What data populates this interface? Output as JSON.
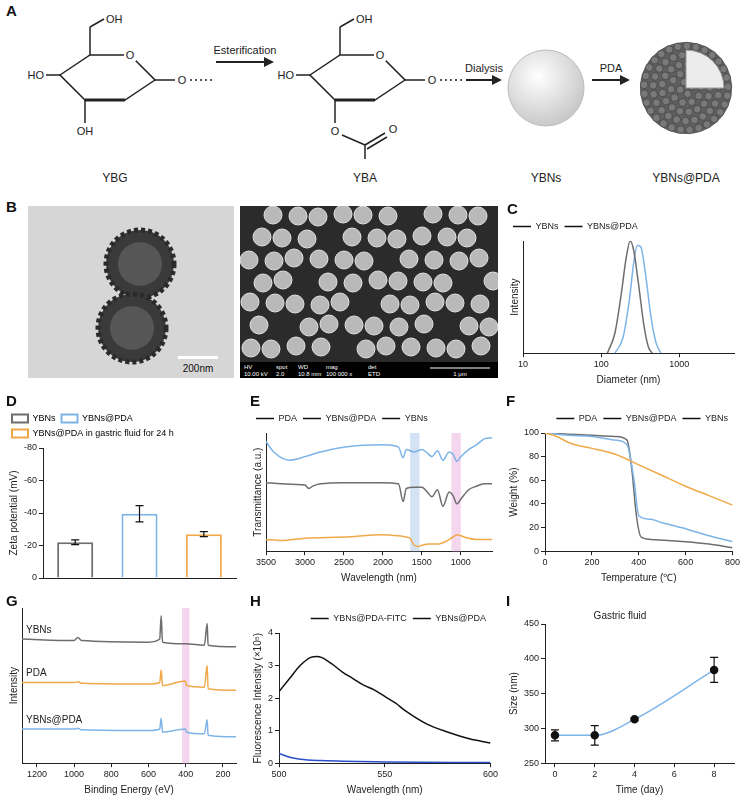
{
  "schematic": {
    "panel": "A",
    "steps": [
      "Esterification",
      "Dialysis",
      "PDA"
    ],
    "structures": [
      {
        "name": "YBG",
        "labels": [
          "OH",
          "HO",
          "O",
          "O",
          "OH"
        ]
      },
      {
        "name": "YBA",
        "labels": [
          "OH",
          "HO",
          "O",
          "O",
          "O",
          "O"
        ]
      }
    ],
    "particles": [
      "YBNs",
      "YBNs@PDA"
    ]
  },
  "images": {
    "panel": "B",
    "tem": {
      "scale_bar": "200nm"
    },
    "sem": {
      "heads": [
        "HV",
        "spot",
        "WD",
        "mag",
        "det"
      ],
      "values": [
        "10.00 kV",
        "2.0",
        "10.8 mm",
        "100 000 x",
        "ETD"
      ],
      "scale_bar": "1 μm"
    }
  },
  "chart_data": [
    {
      "panel": "C",
      "type": "line",
      "x_label": "Diameter (nm)",
      "y_label": "Intensity",
      "log": "x",
      "xlim": [
        10,
        5000
      ],
      "xticks": [
        10,
        100,
        1000
      ],
      "ylim": [
        0,
        100
      ],
      "tick_labels": "x",
      "grid": false,
      "legend": "upper left",
      "series": [
        {
          "name": "YBNs",
          "color": "#6e6e6e",
          "x": [
            120,
            150,
            180,
            210,
            235,
            260,
            300,
            350,
            400,
            450
          ],
          "values": [
            0,
            18,
            52,
            86,
            100,
            92,
            62,
            26,
            6,
            0
          ]
        },
        {
          "name": "YBNs@PDA",
          "color": "#7db4e8",
          "x": [
            150,
            190,
            230,
            260,
            290,
            320,
            370,
            430,
            500,
            580
          ],
          "values": [
            0,
            14,
            48,
            80,
            96,
            95,
            70,
            34,
            10,
            0
          ]
        }
      ]
    },
    {
      "panel": "D",
      "type": "bar",
      "y_label": "Zeta potential (mV)",
      "categories": [
        "YBNs",
        "YBNs@PDA",
        "YBNs@PDA in gastric fluid for 24 h"
      ],
      "values": [
        -22,
        -39.5,
        -27
      ],
      "errors": [
        1.5,
        5,
        1.5
      ],
      "colors": [
        "#6e6e6e",
        "#7db4e8",
        "#f0a848"
      ],
      "ylim": [
        0,
        -80
      ],
      "yticks": [
        0,
        -20,
        -40,
        -60,
        -80
      ],
      "tick_labels": "y",
      "grid": false,
      "legend": "upper left"
    },
    {
      "panel": "E",
      "type": "line",
      "x_label": "Wavelength (nm)",
      "y_label": "Transmittance (a.u.)",
      "xlim": [
        3500,
        600
      ],
      "xticks": [
        3500,
        3000,
        2500,
        2000,
        1500,
        1000
      ],
      "ylim": [
        0,
        100
      ],
      "tick_labels": "x",
      "grid": false,
      "legend": "upper left",
      "bands": [
        {
          "from": 1650,
          "to": 1530,
          "color": "#d3e3f5"
        },
        {
          "from": 1120,
          "to": 1000,
          "color": "#f4d6ef"
        }
      ],
      "series": [
        {
          "name": "PDA",
          "color": "#f0a848",
          "x": [
            3500,
            3300,
            3000,
            2500,
            2000,
            1800,
            1700,
            1650,
            1600,
            1550,
            1500,
            1400,
            1300,
            1200,
            1100,
            1050,
            1000,
            900,
            800,
            700,
            600
          ],
          "values": [
            10,
            9,
            11,
            12,
            14,
            13,
            12,
            11,
            5,
            4,
            5,
            6,
            6,
            8,
            12,
            14,
            13,
            11,
            10,
            10,
            10
          ]
        },
        {
          "name": "YBNs@PDA",
          "color": "#7db4e8",
          "x": [
            3500,
            3450,
            3400,
            3300,
            3200,
            3100,
            3000,
            2900,
            2800,
            2500,
            2000,
            1800,
            1740,
            1700,
            1600,
            1500,
            1430,
            1370,
            1300,
            1230,
            1150,
            1100,
            1050,
            1000,
            900,
            800,
            700,
            600
          ],
          "values": [
            93,
            88,
            84,
            79,
            77,
            78,
            80,
            82,
            84,
            88,
            90,
            88,
            79,
            86,
            84,
            86,
            83,
            80,
            85,
            77,
            84,
            82,
            76,
            80,
            86,
            90,
            95,
            96
          ]
        },
        {
          "name": "YBNs",
          "color": "#6e6e6e",
          "x": [
            3500,
            3300,
            3000,
            2950,
            2900,
            2800,
            2500,
            2000,
            1800,
            1740,
            1700,
            1600,
            1500,
            1430,
            1370,
            1300,
            1230,
            1150,
            1100,
            1050,
            1000,
            900,
            800,
            700,
            600
          ],
          "values": [
            58,
            57,
            56,
            53,
            55,
            57,
            58,
            58,
            57,
            42,
            53,
            54,
            54,
            50,
            46,
            52,
            38,
            50,
            47,
            40,
            44,
            52,
            55,
            57,
            57
          ]
        }
      ]
    },
    {
      "panel": "F",
      "type": "line",
      "x_label": "Temperature (℃)",
      "y_label": "Weight (%)",
      "xlim": [
        0,
        800
      ],
      "xticks": [
        0,
        200,
        400,
        600,
        800
      ],
      "ylim": [
        0,
        100
      ],
      "yticks": [
        0,
        20,
        40,
        60,
        80,
        100
      ],
      "grid": false,
      "legend": "upper right",
      "series": [
        {
          "name": "PDA",
          "color": "#f0a848",
          "x": [
            0,
            50,
            100,
            150,
            200,
            300,
            400,
            500,
            600,
            700,
            800
          ],
          "values": [
            100,
            97,
            92,
            89,
            87,
            82,
            73,
            64,
            55,
            47,
            39
          ]
        },
        {
          "name": "YBNs@PDA",
          "color": "#7db4e8",
          "x": [
            0,
            100,
            200,
            300,
            350,
            380,
            400,
            450,
            500,
            600,
            700,
            800
          ],
          "values": [
            100,
            98,
            97,
            94,
            90,
            60,
            30,
            27,
            24,
            19,
            13,
            8
          ]
        },
        {
          "name": "YBNs",
          "color": "#6e6e6e",
          "x": [
            0,
            100,
            200,
            300,
            350,
            370,
            390,
            410,
            450,
            600,
            700,
            800
          ],
          "values": [
            100,
            99,
            98,
            97,
            94,
            70,
            30,
            12,
            10,
            8,
            6,
            3
          ]
        }
      ]
    },
    {
      "panel": "G",
      "type": "line",
      "x_label": "Binding Energy (eV)",
      "y_label": "Intensity",
      "xlim": [
        1280,
        130
      ],
      "xticks": [
        1200,
        1000,
        800,
        600,
        400,
        200
      ],
      "ylim": [
        0,
        100
      ],
      "tick_labels": "x",
      "grid": false,
      "legend": "inline",
      "bands": [
        {
          "from": 420,
          "to": 380,
          "color": "#f4d6ef"
        }
      ],
      "series": [
        {
          "name": "YBNs",
          "color": "#6e6e6e",
          "x": [
            1280,
            1000,
            980,
            960,
            600,
            540,
            532,
            525,
            400,
            300,
            285,
            280,
            130
          ],
          "values": [
            80,
            79,
            81,
            79,
            78,
            80,
            95,
            78,
            77,
            76,
            90,
            76,
            75
          ]
        },
        {
          "name": "PDA",
          "color": "#f0a848",
          "x": [
            1280,
            1000,
            980,
            960,
            600,
            540,
            532,
            525,
            402,
            395,
            300,
            285,
            280,
            130
          ],
          "values": [
            52,
            52,
            52.5,
            51.5,
            51,
            52,
            60,
            50,
            53,
            50,
            49,
            63,
            48,
            47
          ]
        },
        {
          "name": "YBNs@PDA",
          "color": "#7db4e8",
          "x": [
            1280,
            1000,
            980,
            960,
            600,
            540,
            532,
            525,
            402,
            395,
            300,
            285,
            280,
            130
          ],
          "values": [
            22,
            22,
            22.5,
            21.5,
            21,
            22,
            29,
            20,
            22,
            20,
            19,
            28,
            18,
            17
          ]
        }
      ]
    },
    {
      "panel": "H",
      "type": "line",
      "x_label": "Wavelength (nm)",
      "y_label": "Fluorescence Intensity (×10⁵)",
      "xlim": [
        500,
        600
      ],
      "xticks": [
        500,
        550,
        600
      ],
      "ylim": [
        0,
        4
      ],
      "yticks": [
        0,
        1,
        2,
        3,
        4
      ],
      "grid": false,
      "legend": "upper right",
      "series": [
        {
          "name": "YBNs@PDA-FITC",
          "color": "#111111",
          "x": [
            500,
            505,
            510,
            515,
            518,
            520,
            525,
            530,
            535,
            540,
            545,
            550,
            555,
            560,
            570,
            580,
            590,
            600
          ],
          "values": [
            2.2,
            2.6,
            3.0,
            3.25,
            3.28,
            3.25,
            3.05,
            2.8,
            2.6,
            2.4,
            2.25,
            2.05,
            1.85,
            1.6,
            1.2,
            0.95,
            0.75,
            0.62
          ]
        },
        {
          "name": "YBNs@PDA",
          "color": "#2b4fc9",
          "x": [
            500,
            505,
            510,
            520,
            550,
            600
          ],
          "values": [
            0.3,
            0.18,
            0.12,
            0.08,
            0.04,
            0.02
          ]
        }
      ]
    },
    {
      "panel": "I",
      "type": "line",
      "title": "Gastric fluid",
      "x_label": "Time (day)",
      "y_label": "Size (nm)",
      "xlim": [
        -0.5,
        9
      ],
      "xticks": [
        0,
        2,
        4,
        6,
        8
      ],
      "ylim": [
        250,
        450
      ],
      "yticks": [
        250,
        300,
        350,
        400,
        450
      ],
      "grid": false,
      "series": [
        {
          "color": "#7db4e8",
          "marker": "circle",
          "x": [
            0,
            2,
            4,
            8
          ],
          "values": [
            290,
            290,
            313,
            384
          ],
          "errors": [
            8,
            14,
            2,
            18
          ]
        }
      ]
    }
  ]
}
